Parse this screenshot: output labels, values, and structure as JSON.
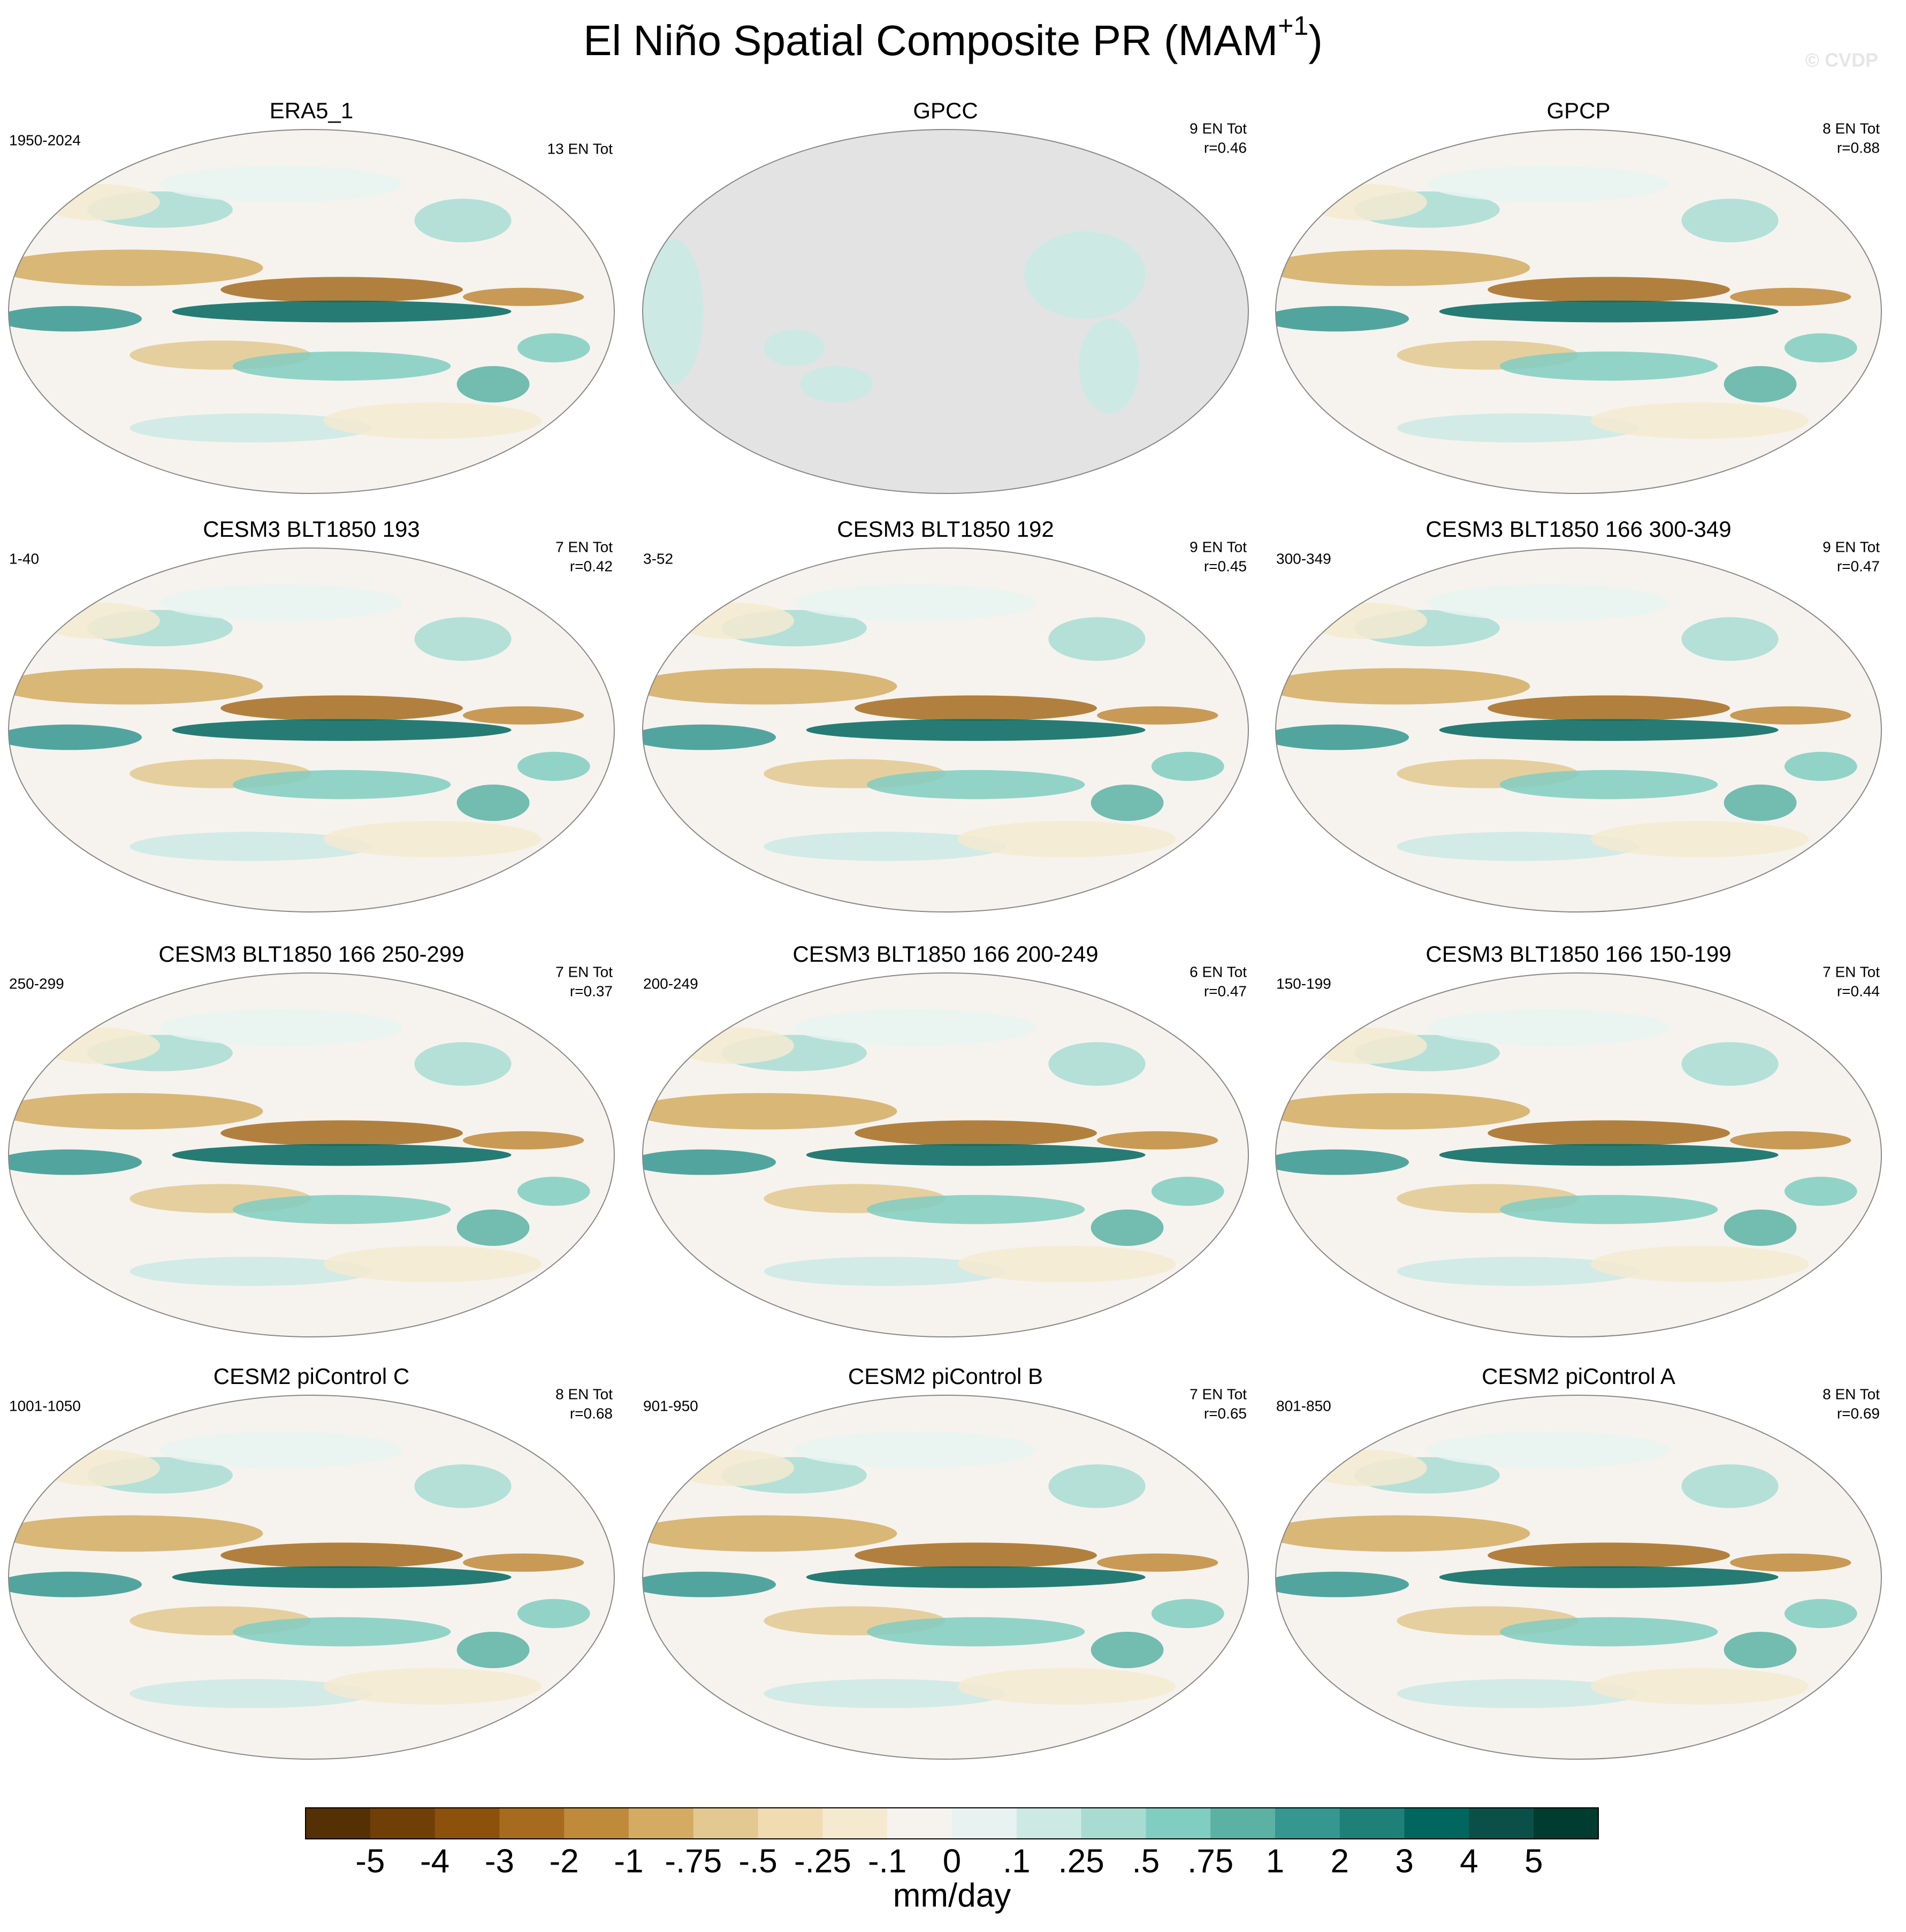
{
  "title": {
    "text": "El Niño Spatial Composite PR (MAM",
    "superscript": "+1",
    "close": ")"
  },
  "watermark": "© CVDP",
  "panels": [
    {
      "title": "ERA5_1",
      "left": "1950-2024",
      "right": [
        "13 EN Tot"
      ]
    },
    {
      "title": "GPCC",
      "left": null,
      "right": [
        "9 EN Tot",
        "r=0.46"
      ]
    },
    {
      "title": "GPCP",
      "left": null,
      "right": [
        "8 EN Tot",
        "r=0.88"
      ]
    },
    {
      "title": "CESM3 BLT1850 193",
      "left": "1-40",
      "right": [
        "7 EN Tot",
        "r=0.42"
      ]
    },
    {
      "title": "CESM3 BLT1850 192",
      "left": "3-52",
      "right": [
        "9 EN Tot",
        "r=0.45"
      ]
    },
    {
      "title": "CESM3 BLT1850 166 300-349",
      "left": "300-349",
      "right": [
        "9 EN Tot",
        "r=0.47"
      ]
    },
    {
      "title": "CESM3 BLT1850 166 250-299",
      "left": "250-299",
      "right": [
        "7 EN Tot",
        "r=0.37"
      ]
    },
    {
      "title": "CESM3 BLT1850 166 200-249",
      "left": "200-249",
      "right": [
        "6 EN Tot",
        "r=0.47"
      ]
    },
    {
      "title": "CESM3 BLT1850 166 150-199",
      "left": "150-199",
      "right": [
        "7 EN Tot",
        "r=0.44"
      ]
    },
    {
      "title": "CESM2 piControl C",
      "left": "1001-1050",
      "right": [
        "8 EN Tot",
        "r=0.68"
      ]
    },
    {
      "title": "CESM2 piControl B",
      "left": "901-950",
      "right": [
        "7 EN Tot",
        "r=0.65"
      ]
    },
    {
      "title": "CESM2 piControl A",
      "left": "801-850",
      "right": [
        "8 EN Tot",
        "r=0.69"
      ]
    }
  ],
  "colorbar": {
    "levels": [
      -5,
      -4,
      -3,
      -2,
      -1,
      {
        "value": -0.75,
        "label": "-.75"
      },
      {
        "value": -0.5,
        "label": "-.5"
      },
      {
        "value": -0.25,
        "label": "-.25"
      },
      {
        "value": -0.1,
        "label": "-.1"
      },
      0,
      {
        "value": 0.1,
        "label": ".1"
      },
      {
        "value": 0.25,
        "label": ".25"
      },
      {
        "value": 0.5,
        "label": ".5"
      },
      {
        "value": 0.75,
        "label": ".75"
      },
      1,
      2,
      3,
      4,
      5
    ],
    "colors": [
      "#543005",
      "#6f3f07",
      "#8c510a",
      "#a66b1e",
      "#bf8a3a",
      "#d3ab62",
      "#e3c88f",
      "#f0dcb0",
      "#f5ead0",
      "#f6f3ee",
      "#e8f3f1",
      "#cde9e4",
      "#a8dcd3",
      "#80cdc1",
      "#5ab1a4",
      "#35978f",
      "#1f8078",
      "#01665e",
      "#0b5048",
      "#003c30"
    ],
    "unit": "mm/day"
  }
}
